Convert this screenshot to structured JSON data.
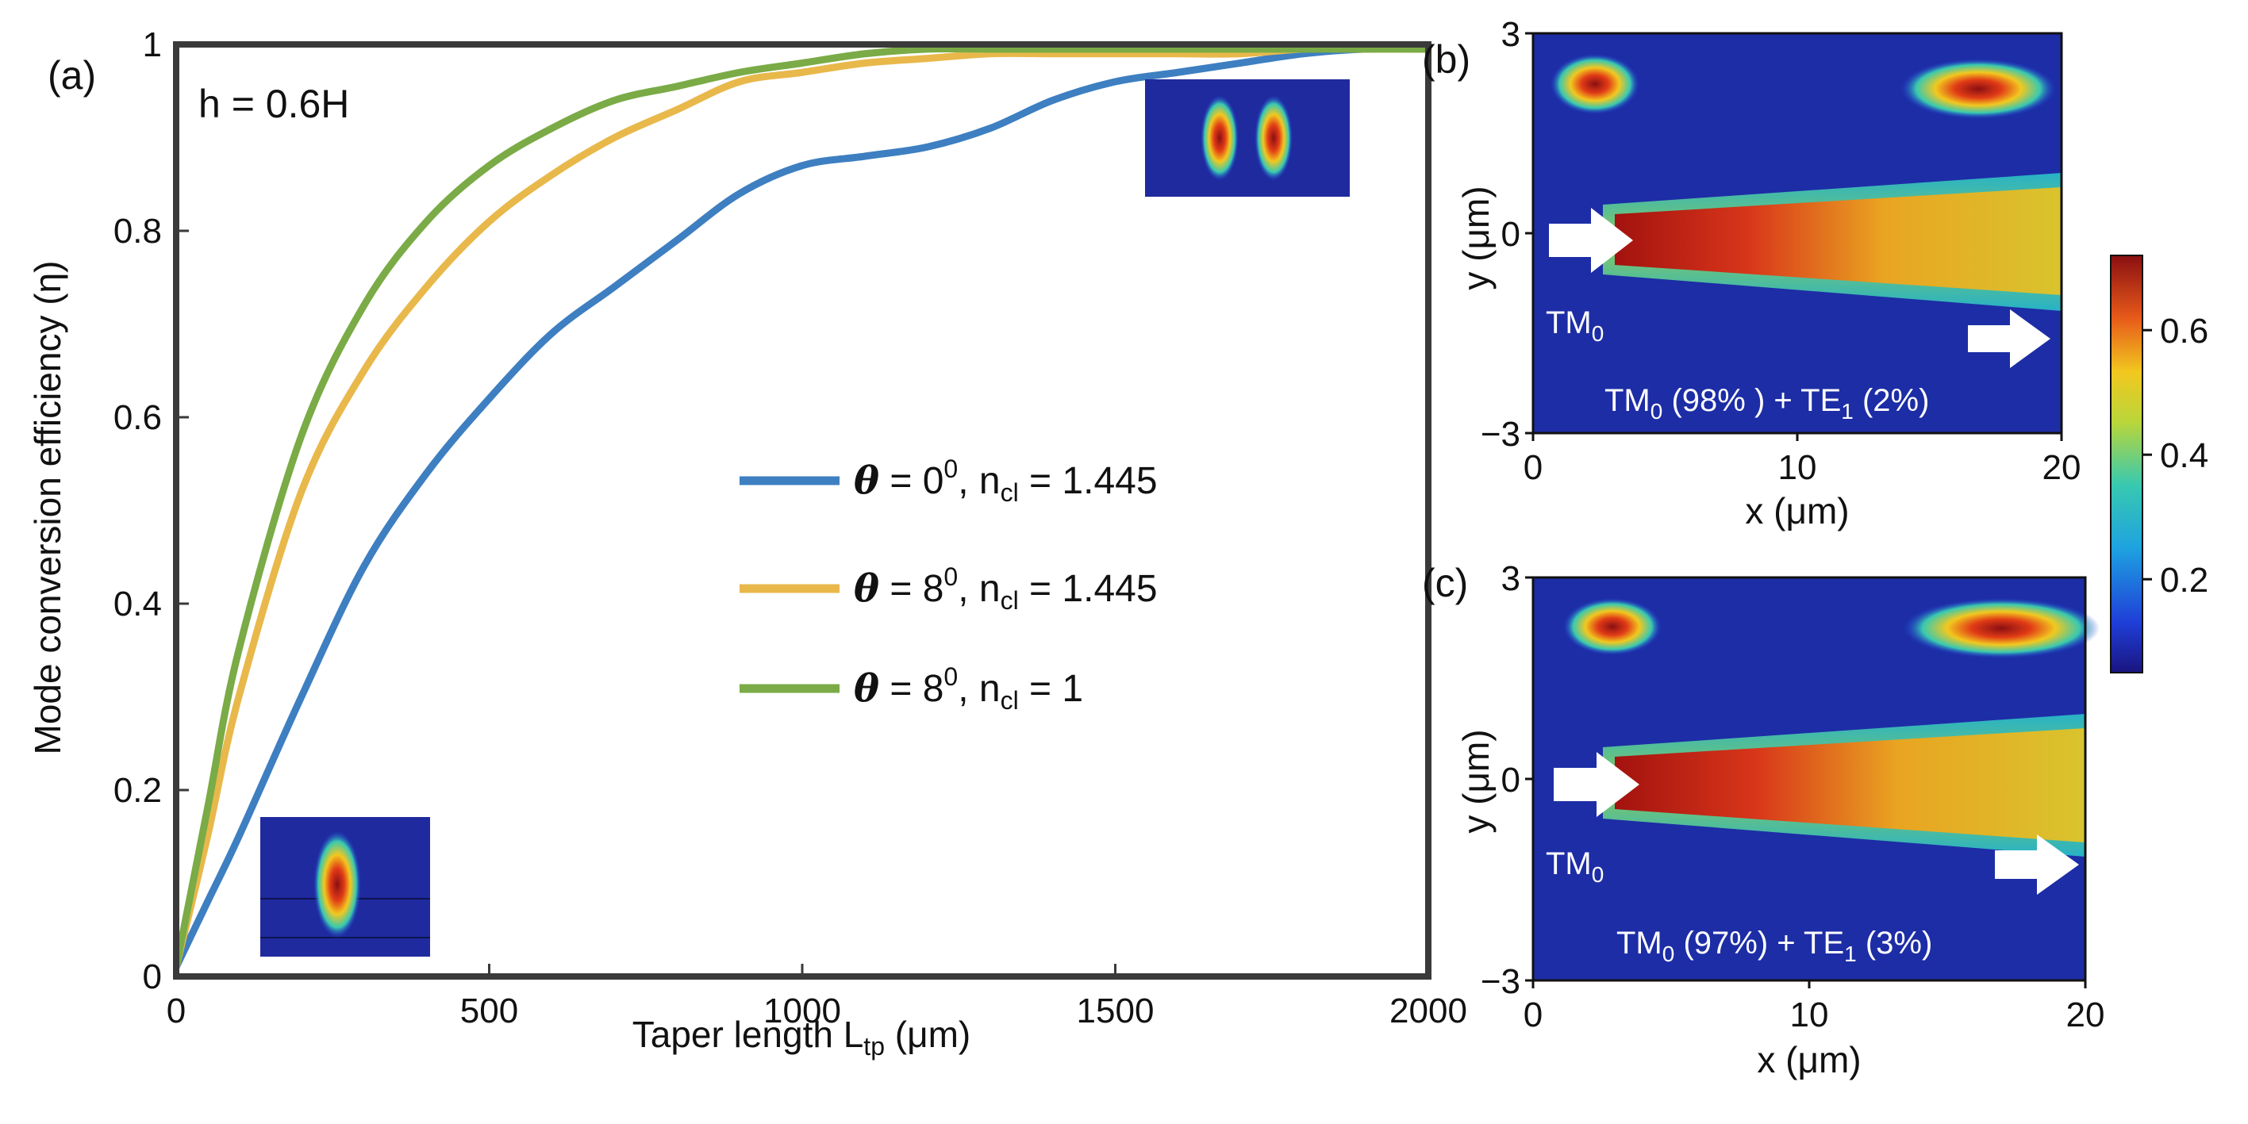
{
  "chart_data": [
    {
      "panel": "(a)",
      "type": "line",
      "annotation": "h = 0.6H",
      "xlabel": "Taper length L_tp (μm)",
      "xlabel_main": "Taper length L",
      "xlabel_sub": "tp",
      "xlabel_unit": " (μm)",
      "ylabel": "Mode conversion efficiency (η)",
      "xlim": [
        0,
        2000
      ],
      "ylim": [
        0,
        1
      ],
      "xticks": [
        0,
        500,
        1000,
        1500,
        2000
      ],
      "yticks": [
        0,
        0.2,
        0.4,
        0.6,
        0.8,
        1
      ],
      "grid": false,
      "legend_position": "center-right",
      "series": [
        {
          "name": "θ = 0⁰, n_cl = 1.445",
          "legend_theta": "θ",
          "legend_angle": " = 0",
          "legend_ncl": "0",
          "legend_index": ", n",
          "legend_sub": "cl",
          "legend_value": " = 1.445",
          "color": "#3d7fc1",
          "x": [
            0,
            50,
            100,
            200,
            300,
            400,
            500,
            600,
            700,
            800,
            900,
            1000,
            1100,
            1200,
            1300,
            1400,
            1500,
            1600,
            1700,
            1800,
            1900,
            2000
          ],
          "y": [
            0.01,
            0.08,
            0.15,
            0.3,
            0.44,
            0.54,
            0.62,
            0.69,
            0.74,
            0.79,
            0.84,
            0.87,
            0.88,
            0.89,
            0.91,
            0.94,
            0.96,
            0.97,
            0.98,
            0.99,
            0.995,
            0.995
          ]
        },
        {
          "name": "θ = 8⁰, n_cl = 1.445",
          "legend_theta": "θ",
          "legend_angle": " = 8",
          "legend_ncl": "0",
          "legend_index": ", n",
          "legend_sub": "cl",
          "legend_value": " = 1.445",
          "color": "#e8b84b",
          "x": [
            0,
            50,
            100,
            200,
            300,
            400,
            500,
            600,
            700,
            800,
            900,
            1000,
            1100,
            1200,
            1300,
            1400,
            1500,
            1600,
            1700,
            1800,
            1900,
            2000
          ],
          "y": [
            0.01,
            0.15,
            0.3,
            0.52,
            0.65,
            0.74,
            0.81,
            0.86,
            0.9,
            0.93,
            0.96,
            0.97,
            0.98,
            0.985,
            0.99,
            0.99,
            0.99,
            0.99,
            0.99,
            0.995,
            0.995,
            0.995
          ]
        },
        {
          "name": "θ = 8⁰, n_cl = 1",
          "legend_theta": "θ",
          "legend_angle": " = 8",
          "legend_ncl": "0",
          "legend_index": ", n",
          "legend_sub": "cl",
          "legend_value": " = 1",
          "color": "#7aab46",
          "x": [
            0,
            50,
            100,
            200,
            300,
            400,
            500,
            600,
            700,
            800,
            900,
            1000,
            1100,
            1200,
            1300,
            1400,
            1500,
            1600,
            1700,
            1800,
            1900,
            2000
          ],
          "y": [
            0.01,
            0.18,
            0.35,
            0.58,
            0.72,
            0.81,
            0.87,
            0.91,
            0.94,
            0.955,
            0.97,
            0.98,
            0.99,
            0.995,
            0.995,
            0.995,
            0.995,
            0.995,
            0.995,
            0.995,
            0.995,
            0.995
          ]
        }
      ]
    },
    {
      "panel": "(b)",
      "type": "heatmap",
      "xlabel": "x (μm)",
      "ylabel": "y (μm)",
      "xlim": [
        0,
        20
      ],
      "ylim": [
        -3,
        3
      ],
      "xticks": [
        0,
        10,
        20
      ],
      "yticks": [
        -3,
        0,
        3
      ],
      "ytick_labels": [
        "−3",
        "0",
        "3"
      ],
      "input_label": "TM",
      "input_sub": "0",
      "result_label_parts": [
        "TM",
        "0",
        " (98% ) + TE",
        "1",
        " (2%)"
      ]
    },
    {
      "panel": "(c)",
      "type": "heatmap",
      "xlabel": "x (μm)",
      "ylabel": "y (μm)",
      "xlim": [
        0,
        20
      ],
      "ylim": [
        -3,
        3
      ],
      "xticks": [
        0,
        10,
        20
      ],
      "yticks": [
        -3,
        0,
        3
      ],
      "ytick_labels": [
        "−3",
        "0",
        "3"
      ],
      "input_label": "TM",
      "input_sub": "0",
      "result_label_parts": [
        "TM",
        "0",
        " (97%) + TE",
        "1",
        " (3%)"
      ]
    },
    {
      "type": "colorbar",
      "range": [
        0.05,
        0.72
      ],
      "ticks": [
        0.2,
        0.4,
        0.6
      ],
      "tick_labels": [
        "0.2",
        "0.4",
        "0.6"
      ]
    }
  ]
}
